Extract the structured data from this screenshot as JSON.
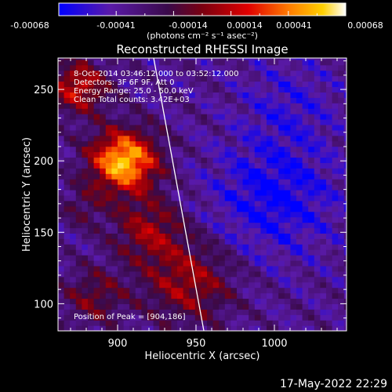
{
  "colorbar": {
    "ticks": [
      "-0.00068",
      "-0.00041",
      "-0.00014",
      "0.00014",
      "0.00041",
      "0.00068"
    ],
    "unit_label": "(photons cm⁻² s⁻¹ asec⁻²)",
    "colors": [
      "#0000ff",
      "#5a1aa8",
      "#3a0a4a",
      "#7a0010",
      "#e00000",
      "#ff7a00",
      "#ffd000",
      "#ffffff"
    ]
  },
  "chart_data": {
    "type": "heatmap",
    "title": "Reconstructed RHESSI Image",
    "xlabel": "Heliocentric X (arcsec)",
    "ylabel": "Heliocentric Y (arcsec)",
    "xlim": [
      862,
      1046
    ],
    "ylim": [
      81,
      272
    ],
    "xticks": [
      900,
      950,
      1000
    ],
    "yticks": [
      100,
      150,
      200,
      250
    ],
    "peak_xy": [
      904,
      186
    ],
    "annotations": [
      "8-Oct-2014 03:46:12.000 to 03:52:12.000",
      "Detectors: 3F 6F 9F, Att 0",
      "Energy Range: 25.0 - 50.0 keV",
      "Clean    Total counts: 3.42E+03",
      "Position of Peak = [904,186]"
    ],
    "limb_line": [
      [
        923,
        272
      ],
      [
        955,
        81
      ]
    ]
  },
  "footer": {
    "timestamp": "17-May-2022 22:29"
  }
}
